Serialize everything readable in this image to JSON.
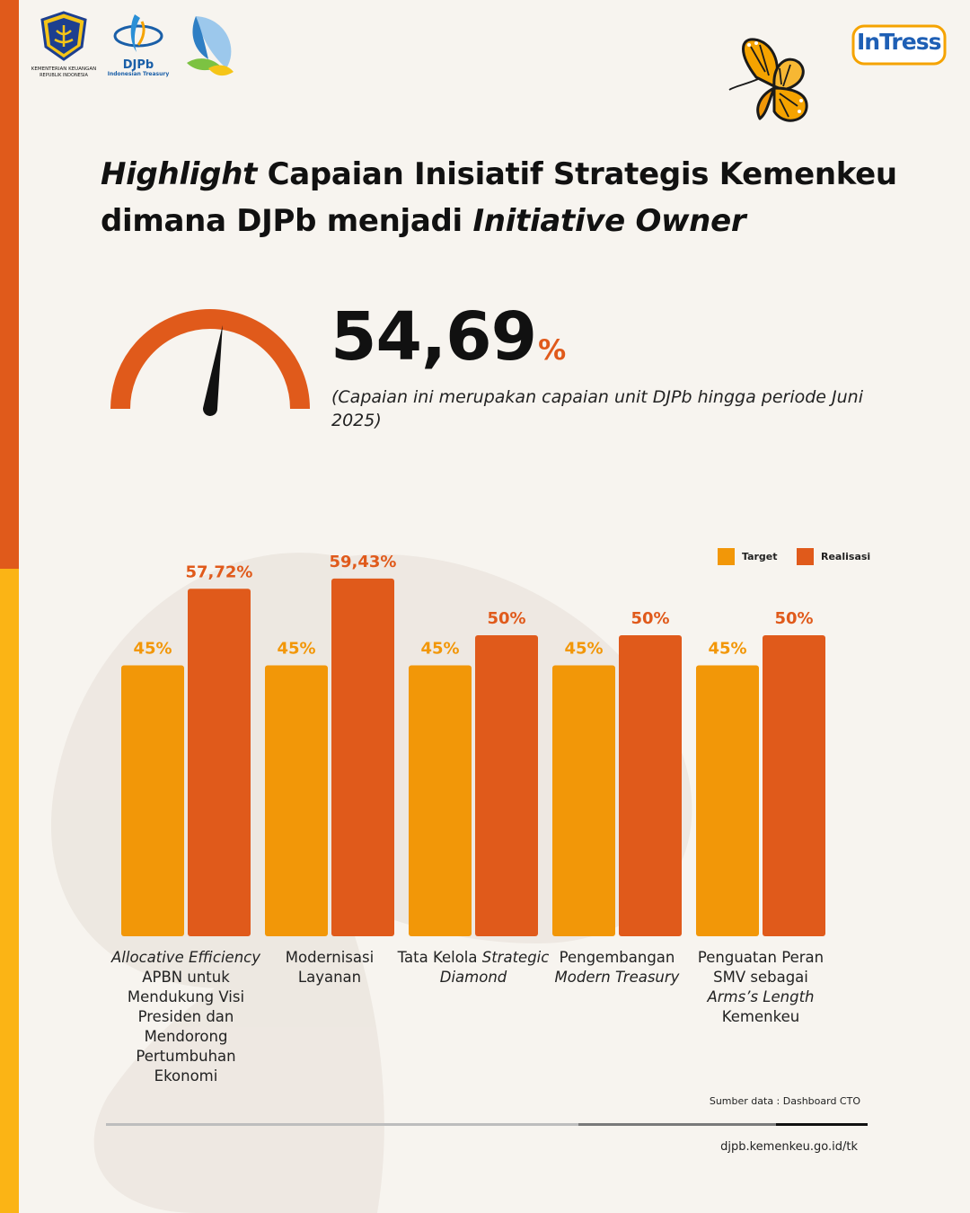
{
  "logos": {
    "kemenkeu_line1": "KEMENTERIAN KEUANGAN",
    "kemenkeu_line2": "REPUBLIK INDONESIA",
    "djpb_name": "DJPb",
    "djpb_tagline": "Indonesian Treasury",
    "intress": "InTress"
  },
  "title": {
    "part1_italic": "Highlight",
    "part2": " Capaian Inisiatif Strategis Kemenkeu dimana DJPb menjadi ",
    "part3_italic": "Initiative Owner"
  },
  "headline": {
    "value": "54,69",
    "unit": "%",
    "gauge_value": 54.69,
    "note": "(Capaian ini merupakan capaian unit DJPb hingga periode Juni 2025)"
  },
  "colors": {
    "target": "#f29708",
    "realisasi": "#e05a1b",
    "accent_orange": "#e05a1b",
    "accent_yellow": "#fbb415",
    "background": "#f7f4ef"
  },
  "chart_data": {
    "type": "bar",
    "categories": [
      "Allocative Efficiency APBN untuk Mendukung Visi Presiden dan Mendorong Pertumbuhan Ekonomi",
      "Modernisasi Layanan",
      "Tata Kelola Strategic Diamond",
      "Pengembangan Modern Treasury",
      "Penguatan Peran SMV sebagai Arms's Length Kemenkeu"
    ],
    "series": [
      {
        "name": "Target",
        "values": [
          45,
          45,
          45,
          45,
          45
        ],
        "labels": [
          "45%",
          "45%",
          "45%",
          "45%",
          "45%"
        ]
      },
      {
        "name": "Realisasi",
        "values": [
          57.72,
          59.43,
          50,
          50,
          50
        ],
        "labels": [
          "57,72%",
          "59,43%",
          "50%",
          "50%",
          "50%"
        ]
      }
    ],
    "title": "",
    "xlabel": "",
    "ylabel": "",
    "ylim": [
      0,
      75
    ],
    "legend": "top-right",
    "grid": false
  },
  "category_labels": [
    {
      "lines": [
        {
          "text": "Allocative Efficiency",
          "italic": true
        },
        {
          "text": "APBN untuk"
        },
        {
          "text": "Mendukung Visi"
        },
        {
          "text": "Presiden dan"
        },
        {
          "text": "Mendorong"
        },
        {
          "text": "Pertumbuhan"
        },
        {
          "text": "Ekonomi"
        }
      ]
    },
    {
      "lines": [
        {
          "text": "Modernisasi"
        },
        {
          "text": "Layanan"
        }
      ]
    },
    {
      "lines": [
        {
          "text": "Tata Kelola ",
          "tail": "Strategic",
          "tail_italic": true
        },
        {
          "text": "Diamond",
          "italic": true
        }
      ]
    },
    {
      "lines": [
        {
          "text": "Pengembangan"
        },
        {
          "text": "Modern Treasury",
          "italic": true
        }
      ]
    },
    {
      "lines": [
        {
          "text": "Penguatan Peran"
        },
        {
          "text": "SMV sebagai"
        },
        {
          "text": "Arms’s Length",
          "italic": true
        },
        {
          "text": "Kemenkeu"
        }
      ]
    }
  ],
  "footer": {
    "source": "Sumber data : Dashboard CTO",
    "url": "djpb.kemenkeu.go.id/tk"
  }
}
